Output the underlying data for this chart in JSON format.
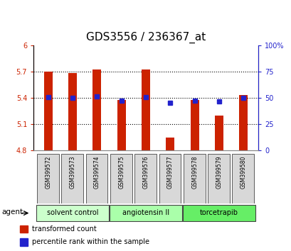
{
  "title": "GDS3556 / 236367_at",
  "samples": [
    "GSM399572",
    "GSM399573",
    "GSM399574",
    "GSM399575",
    "GSM399576",
    "GSM399577",
    "GSM399578",
    "GSM399579",
    "GSM399580"
  ],
  "bar_values": [
    5.7,
    5.68,
    5.72,
    5.38,
    5.72,
    4.95,
    5.38,
    5.2,
    5.43
  ],
  "bar_base": 4.8,
  "blue_dot_values": [
    5.41,
    5.4,
    5.42,
    5.37,
    5.41,
    5.34,
    5.37,
    5.36,
    5.4
  ],
  "bar_color": "#cc2200",
  "dot_color": "#2222cc",
  "ylim": [
    4.8,
    6.0
  ],
  "y_ticks": [
    4.8,
    5.1,
    5.4,
    5.7,
    6.0
  ],
  "y_tick_labels": [
    "4.8",
    "5.1",
    "5.4",
    "5.7",
    "6"
  ],
  "right_ylim": [
    0,
    100
  ],
  "right_yticks": [
    0,
    25,
    50,
    75,
    100
  ],
  "right_yticklabels": [
    "0",
    "25",
    "50",
    "75",
    "100%"
  ],
  "groups": [
    {
      "label": "solvent control",
      "indices": [
        0,
        1,
        2
      ],
      "color": "#ccffcc"
    },
    {
      "label": "angiotensin II",
      "indices": [
        3,
        4,
        5
      ],
      "color": "#aaffaa"
    },
    {
      "label": "torcetrapib",
      "indices": [
        6,
        7,
        8
      ],
      "color": "#66ee66"
    }
  ],
  "agent_label": "agent",
  "legend_items": [
    {
      "label": "transformed count",
      "color": "#cc2200"
    },
    {
      "label": "percentile rank within the sample",
      "color": "#2222cc"
    }
  ],
  "bg_color": "#ffffff",
  "plot_bg": "#ffffff",
  "tick_label_color_left": "#cc2200",
  "tick_label_color_right": "#2222cc",
  "bar_width": 0.35,
  "title_fontsize": 11
}
